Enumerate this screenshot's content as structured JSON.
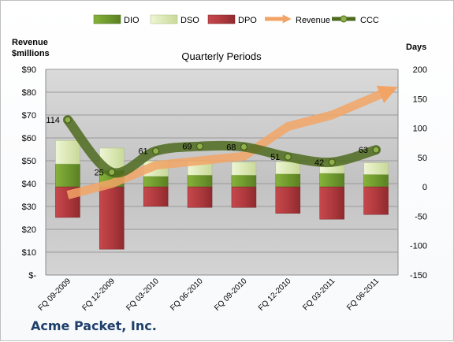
{
  "company": "Acme Packet, Inc.",
  "chart_data": {
    "type": "bar",
    "title": "Quarterly Periods",
    "ylabel_left": [
      "Revenue",
      "$millions"
    ],
    "ylabel_right": "Days",
    "left_ticks": [
      "$-",
      "$10",
      "$20",
      "$30",
      "$40",
      "$50",
      "$60",
      "$70",
      "$80",
      "$90"
    ],
    "right_ticks": [
      "-150",
      "-100",
      "-50",
      "0",
      "50",
      "100",
      "150",
      "200"
    ],
    "ylim_left": [
      0,
      90
    ],
    "ylim_right": [
      -150,
      200
    ],
    "categories": [
      "FQ 09-2009",
      "FQ 12-2009",
      "FQ 03-2010",
      "FQ 06-2010",
      "FQ 09-2010",
      "FQ 12-2010",
      "FQ 03-2011",
      "FQ 06-2011"
    ],
    "legend": [
      "DIO",
      "DSO",
      "DPO",
      "Revenue",
      "CCC"
    ],
    "legend_position": "top",
    "grid": true,
    "series": [
      {
        "name": "DIO",
        "axis": "right",
        "values": [
          39,
          28,
          18,
          20,
          20,
          22,
          23,
          21
        ]
      },
      {
        "name": "DSO",
        "axis": "right",
        "values": [
          40,
          38,
          26,
          24,
          22,
          21,
          20,
          20
        ]
      },
      {
        "name": "DPO",
        "axis": "right",
        "values": [
          -52,
          -106,
          -33,
          -35,
          -35,
          -45,
          -55,
          -47
        ]
      },
      {
        "name": "Revenue",
        "axis": "left",
        "values": [
          35,
          40,
          48,
          50,
          52,
          65,
          70,
          80
        ]
      },
      {
        "name": "CCC",
        "axis": "right",
        "values": [
          114,
          25,
          61,
          69,
          68,
          51,
          42,
          63
        ]
      }
    ],
    "data_labels": [
      "114",
      "25",
      "61",
      "69",
      "68",
      "51",
      "42",
      "63"
    ]
  },
  "colors": {
    "dio": "#6f9a2e",
    "dso": "#dbe8b4",
    "dpo": "#b03a3e",
    "revenue": "#f2a466",
    "ccc": "#4e6a1e",
    "plot_bg": "#c4c4c4"
  }
}
